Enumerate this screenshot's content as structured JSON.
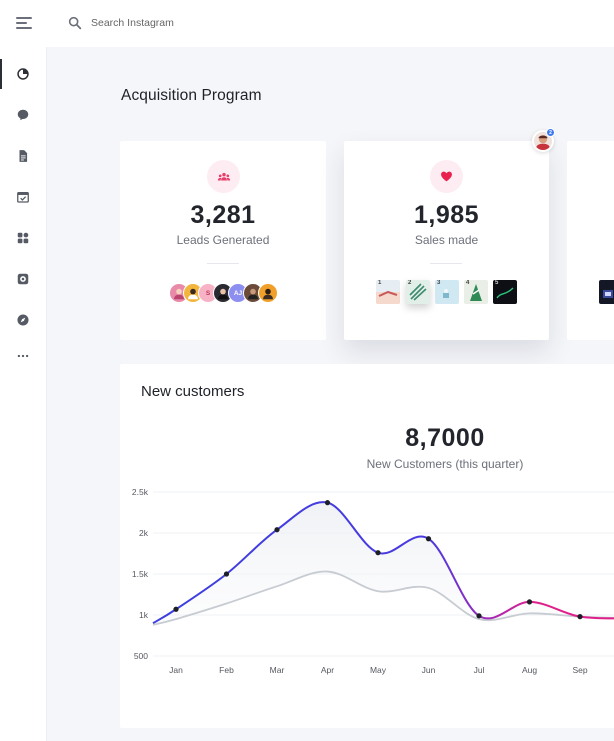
{
  "header": {
    "search_placeholder": "Search Instagram"
  },
  "sidebar": {
    "items": [
      {
        "icon": "chart-pie-icon",
        "active": true
      },
      {
        "icon": "chat-bubble-icon",
        "active": false
      },
      {
        "icon": "document-icon",
        "active": false
      },
      {
        "icon": "calendar-check-icon",
        "active": false
      },
      {
        "icon": "grid-icon",
        "active": false
      },
      {
        "icon": "disc-icon",
        "active": false
      },
      {
        "icon": "compass-icon",
        "active": false
      },
      {
        "icon": "more-icon",
        "active": false
      }
    ]
  },
  "page": {
    "title": "Acquisition Program"
  },
  "cards": [
    {
      "icon": "users-icon",
      "value": "3,281",
      "label": "Leads Generated",
      "avatars": [
        {
          "initials": "",
          "color": "#e98aa8"
        },
        {
          "initials": "",
          "color": "#f2b63c"
        },
        {
          "initials": "S",
          "color": "#f7b3c5"
        },
        {
          "initials": "",
          "color": "#2a2a33"
        },
        {
          "initials": "AJ",
          "color": "#8d8ff0"
        },
        {
          "initials": "",
          "color": "#6b4a3a"
        },
        {
          "initials": "",
          "color": "#f0a02a"
        }
      ]
    },
    {
      "icon": "heart-icon",
      "value": "1,985",
      "label": "Sales made",
      "thumbnails": [
        {
          "number": "1",
          "color": "#e6eef3"
        },
        {
          "number": "2",
          "color": "#e2efe9"
        },
        {
          "number": "3",
          "color": "#cfe8f2"
        },
        {
          "number": "4",
          "color": "#e9efe6"
        },
        {
          "number": "5",
          "color": "#0d0f14"
        }
      ],
      "notification_count": "2"
    }
  ],
  "new_customers": {
    "title": "New customers",
    "value": "8,7000",
    "label": "New Customers (this quarter)"
  },
  "chart_data": {
    "type": "line",
    "x": [
      "Jan",
      "Feb",
      "Mar",
      "Apr",
      "May",
      "Jun",
      "Jul",
      "Aug",
      "Sep"
    ],
    "y_ticks": [
      "2.5k",
      "2k",
      "1.5k",
      "1k",
      "500"
    ],
    "ylim": [
      500,
      2500
    ],
    "series": [
      {
        "values": [
          1070,
          1500,
          2040,
          2370,
          1760,
          1930,
          990,
          1160,
          980
        ],
        "color_start": "#3b3fe0",
        "color_end": "#e0208a",
        "markers": true
      },
      {
        "values": [
          950,
          1140,
          1350,
          1530,
          1290,
          1330,
          950,
          1020,
          980
        ],
        "color": "#c7cbd2",
        "markers": false
      }
    ],
    "grid": true
  },
  "colors": {
    "accent_pink": "#e83e6c",
    "background": "#f5f6f9"
  }
}
